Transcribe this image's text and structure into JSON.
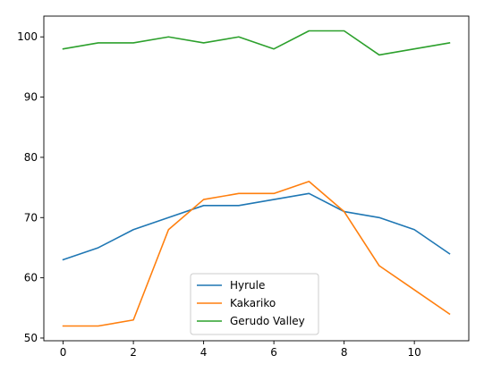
{
  "chart_data": {
    "type": "line",
    "x": [
      0,
      1,
      2,
      3,
      4,
      5,
      6,
      7,
      8,
      9,
      10,
      11
    ],
    "xlim": [
      -0.55,
      11.55
    ],
    "ylim": [
      49.55,
      103.45
    ],
    "xticks": [
      0,
      2,
      4,
      6,
      8,
      10
    ],
    "yticks": [
      50,
      60,
      70,
      80,
      90,
      100
    ],
    "grid": false,
    "legend_position": "lower-center",
    "series": [
      {
        "name": "Hyrule",
        "color": "#1f77b4",
        "values": [
          63,
          65,
          68,
          70,
          72,
          72,
          73,
          74,
          71,
          70,
          68,
          64
        ]
      },
      {
        "name": "Kakariko",
        "color": "#ff7f0e",
        "values": [
          52,
          52,
          53,
          68,
          73,
          74,
          74,
          76,
          71,
          62,
          58,
          54
        ]
      },
      {
        "name": "Gerudo Valley",
        "color": "#2ca02c",
        "values": [
          98,
          99,
          99,
          100,
          99,
          100,
          98,
          101,
          101,
          97,
          98,
          99
        ]
      }
    ]
  }
}
